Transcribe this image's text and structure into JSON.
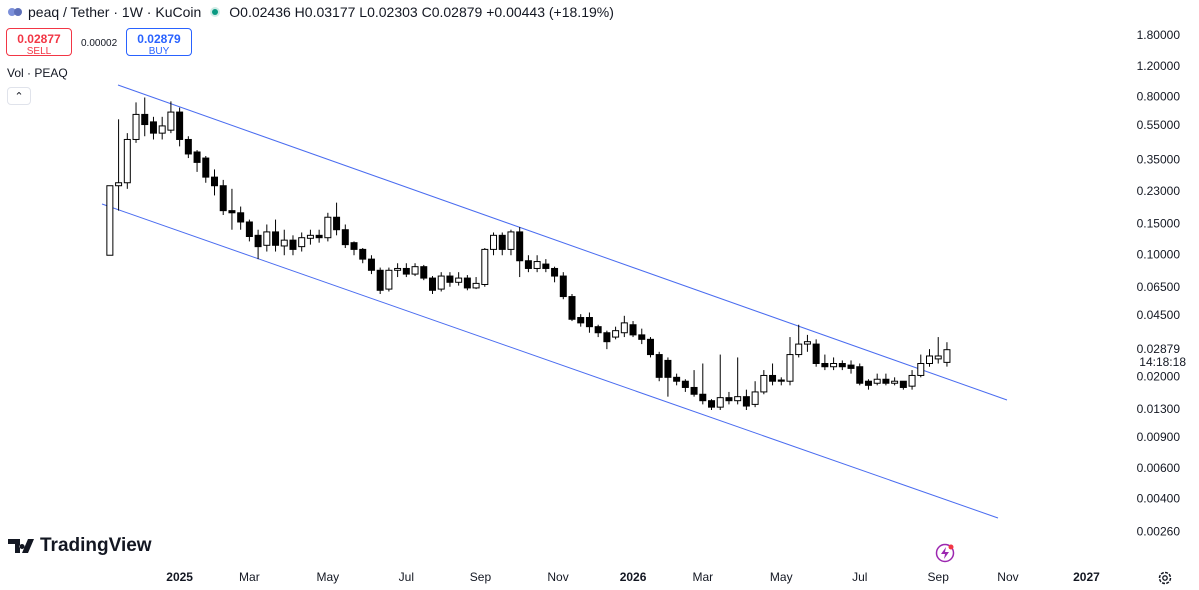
{
  "header": {
    "symbol": "peaq / Tether · 1W · KuCoin",
    "open_label": "O",
    "open": "0.02436",
    "high_label": "H",
    "high": "0.03177",
    "low_label": "L",
    "low": "0.02303",
    "close_label": "C",
    "close": "0.02879",
    "change": "+0.00443 (+18.19%)"
  },
  "trade": {
    "sell_price": "0.02877",
    "sell_label": "SELL",
    "spread": "0.00002",
    "buy_price": "0.02879",
    "buy_label": "BUY"
  },
  "volume_label": "Vol · PEAQ",
  "brand": "TradingView",
  "chart_data": {
    "type": "candlestick",
    "log_scale": true,
    "grid": false,
    "up_color": "#ffffff",
    "down_color": "#000000",
    "edge_color": "#000000",
    "categories": [
      null,
      null,
      null,
      null,
      null,
      null,
      null,
      null,
      null,
      null,
      null,
      null,
      null,
      null,
      null,
      null,
      null,
      null,
      null,
      null,
      null,
      null,
      null,
      null,
      null,
      null,
      null,
      null,
      null,
      null,
      null,
      null,
      null,
      null,
      null,
      null,
      null,
      null,
      null,
      null,
      null,
      null,
      null,
      null,
      null,
      null,
      null,
      null,
      null,
      null,
      null,
      null,
      null,
      null,
      null,
      null,
      null,
      null,
      null,
      null,
      null,
      null,
      null,
      null,
      null,
      null,
      null,
      null,
      null,
      null,
      null,
      null,
      null,
      null,
      null,
      null,
      null,
      null,
      null,
      null,
      null,
      null,
      null,
      null,
      null,
      null,
      null,
      null,
      null,
      null,
      null,
      null,
      null,
      null,
      null,
      null,
      null
    ],
    "open": [
      0.1,
      0.25,
      0.26,
      0.46,
      0.64,
      0.58,
      0.5,
      0.52,
      0.66,
      0.46,
      0.39,
      0.36,
      0.28,
      0.25,
      0.18,
      0.175,
      0.155,
      0.13,
      0.114,
      0.136,
      0.113,
      0.122,
      0.112,
      0.125,
      0.13,
      0.126,
      0.165,
      0.14,
      0.118,
      0.108,
      0.095,
      0.082,
      0.064,
      0.082,
      0.084,
      0.078,
      0.086,
      0.074,
      0.064,
      0.076,
      0.07,
      0.074,
      0.065,
      0.068,
      0.108,
      0.13,
      0.108,
      0.136,
      0.093,
      0.084,
      0.089,
      0.084,
      0.076,
      0.058,
      0.044,
      0.044,
      0.039,
      0.036,
      0.034,
      0.036,
      0.04,
      0.035,
      0.033,
      0.027,
      0.025,
      0.02,
      0.019,
      0.0175,
      0.016,
      0.0147,
      0.0135,
      0.0153,
      0.0147,
      0.0155,
      0.014,
      0.0165,
      0.0205,
      0.0193,
      0.019,
      0.027,
      0.031,
      0.031,
      0.024,
      0.023,
      0.024,
      0.0235,
      0.023,
      0.019,
      0.0185,
      0.0195,
      0.0185,
      0.019,
      0.0178,
      0.0205,
      0.024,
      0.0255,
      0.02436
    ],
    "high": [
      0.25,
      0.6,
      0.5,
      0.75,
      0.8,
      0.62,
      0.62,
      0.76,
      0.7,
      0.48,
      0.4,
      0.37,
      0.31,
      0.27,
      0.24,
      0.19,
      0.16,
      0.14,
      0.15,
      0.16,
      0.14,
      0.13,
      0.135,
      0.14,
      0.14,
      0.175,
      0.2,
      0.15,
      0.12,
      0.11,
      0.1,
      0.085,
      0.085,
      0.09,
      0.09,
      0.09,
      0.088,
      0.076,
      0.08,
      0.08,
      0.08,
      0.077,
      0.075,
      0.11,
      0.135,
      0.135,
      0.14,
      0.145,
      0.1,
      0.1,
      0.095,
      0.086,
      0.08,
      0.06,
      0.046,
      0.047,
      0.04,
      0.037,
      0.039,
      0.045,
      0.042,
      0.038,
      0.034,
      0.028,
      0.026,
      0.021,
      0.0195,
      0.022,
      0.024,
      0.015,
      0.027,
      0.0165,
      0.026,
      0.017,
      0.019,
      0.022,
      0.024,
      0.02,
      0.034,
      0.04,
      0.035,
      0.033,
      0.027,
      0.026,
      0.025,
      0.025,
      0.024,
      0.0195,
      0.021,
      0.021,
      0.02,
      0.019,
      0.022,
      0.027,
      0.029,
      0.034,
      0.03177
    ],
    "low": [
      0.1,
      0.18,
      0.24,
      0.44,
      0.48,
      0.46,
      0.46,
      0.5,
      0.42,
      0.36,
      0.3,
      0.26,
      0.22,
      0.17,
      0.14,
      0.14,
      0.12,
      0.095,
      0.105,
      0.105,
      0.1,
      0.1,
      0.105,
      0.115,
      0.118,
      0.12,
      0.13,
      0.11,
      0.1,
      0.09,
      0.078,
      0.06,
      0.062,
      0.075,
      0.075,
      0.076,
      0.072,
      0.06,
      0.062,
      0.066,
      0.067,
      0.063,
      0.064,
      0.066,
      0.1,
      0.1,
      0.1,
      0.075,
      0.08,
      0.08,
      0.08,
      0.07,
      0.056,
      0.042,
      0.039,
      0.036,
      0.034,
      0.029,
      0.033,
      0.034,
      0.034,
      0.031,
      0.026,
      0.019,
      0.0155,
      0.018,
      0.0165,
      0.0155,
      0.014,
      0.013,
      0.013,
      0.014,
      0.014,
      0.013,
      0.0135,
      0.016,
      0.018,
      0.018,
      0.018,
      0.026,
      0.028,
      0.023,
      0.022,
      0.022,
      0.022,
      0.021,
      0.018,
      0.017,
      0.018,
      0.018,
      0.018,
      0.017,
      0.017,
      0.02,
      0.023,
      0.024,
      0.02303
    ],
    "close": [
      0.25,
      0.26,
      0.46,
      0.64,
      0.56,
      0.5,
      0.55,
      0.66,
      0.46,
      0.38,
      0.34,
      0.28,
      0.25,
      0.18,
      0.175,
      0.155,
      0.128,
      0.112,
      0.136,
      0.114,
      0.122,
      0.108,
      0.126,
      0.13,
      0.126,
      0.165,
      0.14,
      0.115,
      0.108,
      0.095,
      0.082,
      0.063,
      0.082,
      0.084,
      0.078,
      0.086,
      0.074,
      0.063,
      0.076,
      0.07,
      0.074,
      0.065,
      0.069,
      0.108,
      0.13,
      0.108,
      0.136,
      0.093,
      0.084,
      0.092,
      0.084,
      0.076,
      0.058,
      0.043,
      0.041,
      0.039,
      0.036,
      0.032,
      0.037,
      0.041,
      0.035,
      0.033,
      0.027,
      0.02,
      0.02,
      0.019,
      0.0175,
      0.016,
      0.0147,
      0.0135,
      0.0153,
      0.0147,
      0.0155,
      0.0137,
      0.0165,
      0.0205,
      0.019,
      0.019,
      0.027,
      0.031,
      0.032,
      0.024,
      0.023,
      0.024,
      0.023,
      0.0225,
      0.0185,
      0.018,
      0.0195,
      0.0185,
      0.019,
      0.0175,
      0.0205,
      0.024,
      0.0265,
      0.0265,
      0.02879
    ],
    "xlim": [
      -12.6,
      114.7
    ],
    "xticks": [
      {
        "value": 8,
        "label": "2025"
      },
      {
        "value": 16,
        "label": "Mar"
      },
      {
        "value": 25,
        "label": "May"
      },
      {
        "value": 34,
        "label": "Jul"
      },
      {
        "value": 42.5,
        "label": "Sep"
      },
      {
        "value": 51.4,
        "label": "Nov"
      },
      {
        "value": 60,
        "label": "2026"
      },
      {
        "value": 68,
        "label": "Mar"
      },
      {
        "value": 77,
        "label": "May"
      },
      {
        "value": 86,
        "label": "Jul"
      },
      {
        "value": 95,
        "label": "Sep"
      },
      {
        "value": 103,
        "label": "Nov"
      },
      {
        "value": 112,
        "label": "2027"
      }
    ],
    "ylim": [
      0.0018,
      2.08
    ],
    "yticks": [
      {
        "value": 1.8,
        "label": "1.80000"
      },
      {
        "value": 1.2,
        "label": "1.20000"
      },
      {
        "value": 0.8,
        "label": "0.80000"
      },
      {
        "value": 0.55,
        "label": "0.55000"
      },
      {
        "value": 0.35,
        "label": "0.35000"
      },
      {
        "value": 0.23,
        "label": "0.23000"
      },
      {
        "value": 0.15,
        "label": "0.15000"
      },
      {
        "value": 0.1,
        "label": "0.10000"
      },
      {
        "value": 0.065,
        "label": "0.06500"
      },
      {
        "value": 0.045,
        "label": "0.04500"
      },
      {
        "value": 0.02,
        "label": "0.02000"
      },
      {
        "value": 0.013,
        "label": "0.01300"
      },
      {
        "value": 0.009,
        "label": "0.00900"
      },
      {
        "value": 0.006,
        "label": "0.00600"
      },
      {
        "value": 0.004,
        "label": "0.00400"
      },
      {
        "value": 0.0026,
        "label": "0.00260"
      }
    ],
    "last_price": 0.02879,
    "countdown": "14:18:18"
  }
}
